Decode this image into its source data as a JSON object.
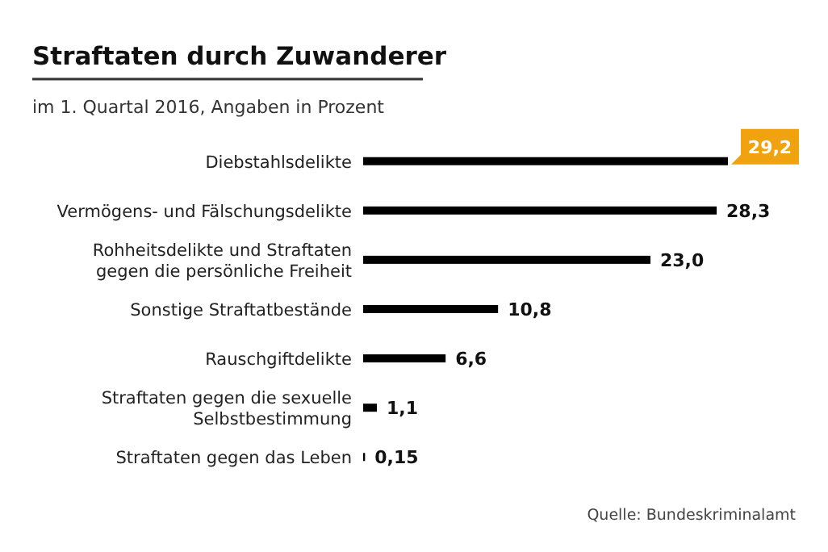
{
  "chart_data": {
    "type": "bar",
    "orientation": "horizontal",
    "title": "Straftaten durch Zuwanderer",
    "subtitle": "im 1. Quartal 2016, Angaben in Prozent",
    "categories": [
      "Diebstahlsdelikte",
      "Vermögens- und Fälschungsdelikte",
      "Rohheitsdelikte und Straftaten\ngegen die persönliche Freiheit",
      "Sonstige Straftatbestände",
      "Rauschgiftdelikte",
      "Straftaten gegen die sexuelle\nSelbstbestimmung",
      "Straftaten gegen das Leben"
    ],
    "values": [
      29.2,
      28.3,
      23.0,
      10.8,
      6.6,
      1.1,
      0.15
    ],
    "value_labels": [
      "29,2",
      "28,3",
      "23,0",
      "10,8",
      "6,6",
      "1,1",
      "0,15"
    ],
    "color": "#000000",
    "annotations": [
      "Quelle: Bundeskriminalamt"
    ]
  }
}
